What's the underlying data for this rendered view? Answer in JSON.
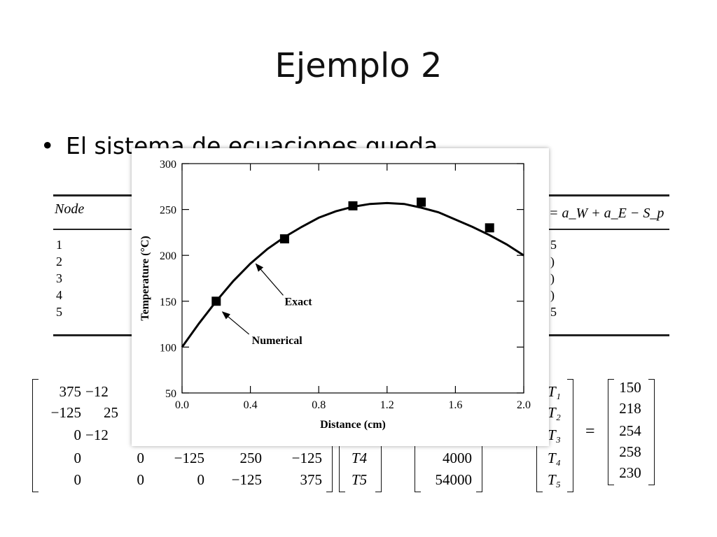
{
  "slide": {
    "title": "Ejemplo 2",
    "bullet": "El sistema de ecuaciones queda"
  },
  "table": {
    "header_node": "Node",
    "header_ap": "= a_W + a_E − S_p",
    "nodes": [
      "1",
      "2",
      "3",
      "4",
      "5"
    ],
    "ap_fragments": [
      "5",
      ")",
      ")",
      ")",
      "5"
    ]
  },
  "matrix": {
    "rows": [
      [
        "375",
        "−12"
      ],
      [
        "−125",
        "25"
      ],
      [
        "0",
        "−12"
      ],
      [
        "0",
        "0",
        "−125",
        "250",
        "−125"
      ],
      [
        "0",
        "0",
        "0",
        "−125",
        "375"
      ]
    ],
    "unknowns": [
      "T₁",
      "T₂",
      "T₃",
      "T₄",
      "T₅"
    ],
    "unknowns_visible": [
      "T4",
      "T5"
    ],
    "rhs_visible": [
      "4000",
      "54000"
    ],
    "solution": [
      "150",
      "218",
      "254",
      "258",
      "230"
    ]
  },
  "chart_data": {
    "type": "line",
    "xlabel": "Distance (cm)",
    "ylabel": "Temperature (°C)",
    "xlim": [
      0,
      2.0
    ],
    "ylim": [
      50,
      300
    ],
    "xticks": [
      "0.0",
      "0.4",
      "0.8",
      "1.2",
      "1.6",
      "2.0"
    ],
    "yticks": [
      "50",
      "100",
      "150",
      "200",
      "250",
      "300"
    ],
    "series": [
      {
        "name": "Exact",
        "style": "line",
        "x": [
          0,
          0.1,
          0.2,
          0.3,
          0.4,
          0.5,
          0.6,
          0.7,
          0.8,
          0.9,
          1.0,
          1.1,
          1.2,
          1.3,
          1.4,
          1.5,
          1.6,
          1.7,
          1.8,
          1.9,
          2.0
        ],
        "y": [
          100,
          126,
          150,
          172,
          191,
          207,
          220,
          231,
          241,
          248,
          253,
          256,
          257,
          256,
          252,
          247,
          239,
          231,
          222,
          212,
          200
        ]
      },
      {
        "name": "Numerical",
        "style": "square-markers",
        "x": [
          0.2,
          0.6,
          1.0,
          1.4,
          1.8
        ],
        "y": [
          150,
          218,
          254,
          258,
          230
        ]
      }
    ],
    "annotations": [
      {
        "text": "Exact",
        "points_to_x": 0.42,
        "points_to_y": 193
      },
      {
        "text": "Numerical",
        "points_to_x": 0.22,
        "points_to_y": 146
      }
    ],
    "grid": false,
    "colors": {
      "line": "#000000",
      "marker": "#000000"
    }
  }
}
